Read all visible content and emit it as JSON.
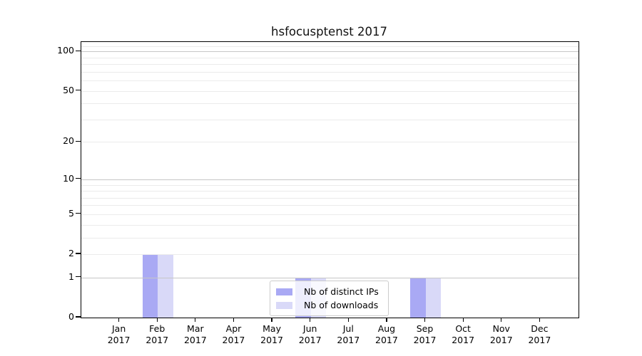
{
  "title": "hsfocusptenst 2017",
  "colors": {
    "bar_distinct_ips": "#a9a9f4",
    "bar_downloads": "#d9d9f8",
    "grid_major": "#c6c6c6",
    "grid_minor": "#ebebeb",
    "axis": "#000000",
    "legend_border": "#cccccc"
  },
  "chart_data": {
    "type": "bar",
    "title": "hsfocusptenst 2017",
    "categories": [
      "Jan",
      "Feb",
      "Mar",
      "Apr",
      "May",
      "Jun",
      "Jul",
      "Aug",
      "Sep",
      "Oct",
      "Nov",
      "Dec"
    ],
    "year_label": "2017",
    "series": [
      {
        "name": "Nb of distinct IPs",
        "color": "#a9a9f4",
        "values": [
          0,
          2,
          0,
          0,
          0,
          1,
          0,
          0,
          1,
          0,
          0,
          0
        ]
      },
      {
        "name": "Nb of downloads",
        "color": "#d9d9f8",
        "values": [
          0,
          2,
          0,
          0,
          0,
          1,
          0,
          0,
          1,
          0,
          0,
          0
        ]
      }
    ],
    "yscale": "log1p",
    "ylim": [
      0,
      118
    ],
    "yticks": [
      0,
      1,
      2,
      5,
      10,
      20,
      50,
      100
    ],
    "major_gridlines": [
      1,
      10,
      100
    ],
    "minor_gridlines": [
      2,
      3,
      4,
      5,
      6,
      7,
      8,
      9,
      20,
      30,
      40,
      50,
      60,
      70,
      80,
      90,
      110
    ],
    "grid": true,
    "legend_position": "lower-center-inside"
  }
}
